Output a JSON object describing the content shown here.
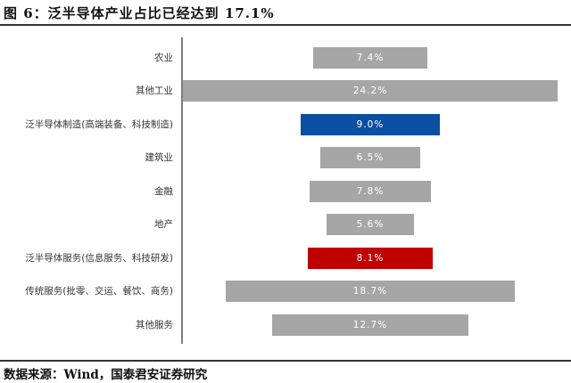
{
  "header": {
    "title": "图 6：泛半导体产业占比已经达到 17.1%"
  },
  "footer": {
    "source": "数据来源：Wind，国泰君安证券研究"
  },
  "colors": {
    "default_bar": "#a6a6a6",
    "highlight_manufacturing": "#0b4fa0",
    "highlight_services": "#c00000",
    "label_text": "#ffffff",
    "axis": "#7f7f7f"
  },
  "chart_data": {
    "type": "bar",
    "orientation": "horizontal-centered",
    "title": "泛半导体产业占比已经达到 17.1%",
    "xlabel": "",
    "ylabel": "",
    "grid": false,
    "legend": "none",
    "categories": [
      "农业",
      "其他工业",
      "泛半导体制造(高端装备、科技制造)",
      "建筑业",
      "金融",
      "地产",
      "泛半导体服务(信息服务、科技研发)",
      "传统服务(批零、交运、餐饮、商务)",
      "其他服务"
    ],
    "values": [
      7.4,
      24.2,
      9.0,
      6.5,
      7.8,
      5.6,
      8.1,
      18.7,
      12.7
    ],
    "value_labels": [
      "7.4%",
      "24.2%",
      "9.0%",
      "6.5%",
      "7.8%",
      "5.6%",
      "8.1%",
      "18.7%",
      "12.7%"
    ],
    "bar_colors": [
      "#a6a6a6",
      "#a6a6a6",
      "#0b4fa0",
      "#a6a6a6",
      "#a6a6a6",
      "#a6a6a6",
      "#c00000",
      "#a6a6a6",
      "#a6a6a6"
    ],
    "unit": "%",
    "source": "Wind，国泰君安证券研究"
  }
}
